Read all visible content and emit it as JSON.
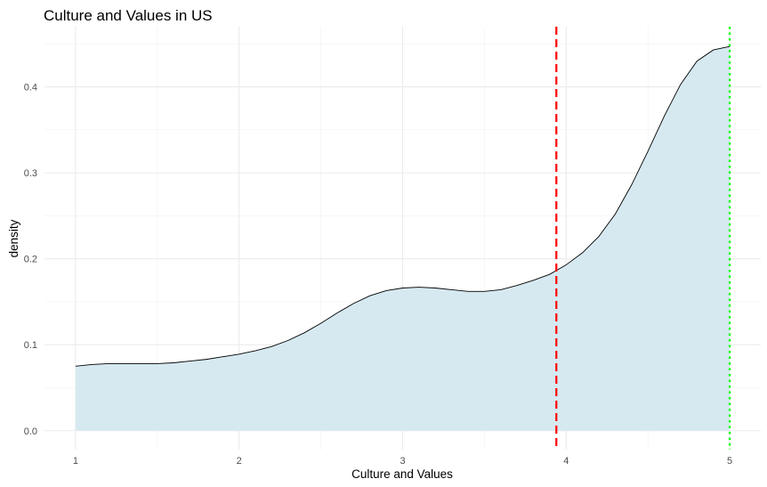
{
  "chart_data": {
    "type": "area",
    "title": "Culture and Values in US",
    "xlabel": "Culture and Values",
    "ylabel": "density",
    "xlim": [
      0.81,
      5.19
    ],
    "ylim": [
      -0.022,
      0.47
    ],
    "x_ticks": [
      1,
      2,
      3,
      4,
      5
    ],
    "x_tick_labels": [
      "1",
      "2",
      "3",
      "4",
      "5"
    ],
    "y_ticks": [
      0.0,
      0.1,
      0.2,
      0.3,
      0.4
    ],
    "y_tick_labels": [
      "0.0",
      "0.1",
      "0.2",
      "0.3",
      "0.4"
    ],
    "grid": true,
    "series": [
      {
        "fill_color": "#d6e9f1",
        "line_color": "#000000",
        "x": [
          1.0,
          1.1,
          1.2,
          1.3,
          1.4,
          1.5,
          1.6,
          1.7,
          1.8,
          1.9,
          2.0,
          2.1,
          2.2,
          2.3,
          2.4,
          2.5,
          2.6,
          2.7,
          2.8,
          2.9,
          3.0,
          3.1,
          3.2,
          3.3,
          3.4,
          3.5,
          3.6,
          3.7,
          3.8,
          3.9,
          4.0,
          4.1,
          4.2,
          4.3,
          4.4,
          4.5,
          4.6,
          4.7,
          4.8,
          4.9,
          5.0
        ],
        "y": [
          0.075,
          0.077,
          0.078,
          0.078,
          0.078,
          0.078,
          0.079,
          0.081,
          0.083,
          0.086,
          0.089,
          0.093,
          0.098,
          0.105,
          0.114,
          0.125,
          0.137,
          0.148,
          0.157,
          0.163,
          0.166,
          0.167,
          0.166,
          0.164,
          0.162,
          0.162,
          0.164,
          0.169,
          0.175,
          0.182,
          0.193,
          0.207,
          0.226,
          0.252,
          0.286,
          0.325,
          0.366,
          0.403,
          0.43,
          0.443,
          0.447
        ]
      }
    ],
    "reference_lines": [
      {
        "x": 3.94,
        "color": "#ff0000",
        "style": "dashed"
      },
      {
        "x": 5.0,
        "color": "#00ff00",
        "style": "dotted"
      }
    ]
  }
}
